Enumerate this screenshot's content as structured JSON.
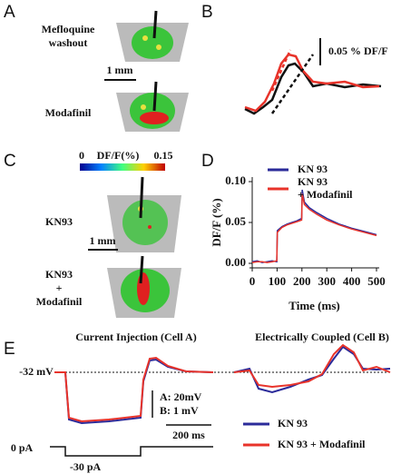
{
  "panel_a": {
    "letter": "A",
    "top_label": [
      "Mefloquine",
      "washout"
    ],
    "scale": "1 mm",
    "bottom_label": "Modafinil"
  },
  "panel_b": {
    "letter": "B",
    "scale": "0.05 % DF/F"
  },
  "panel_c": {
    "letter": "C",
    "colorbar": {
      "min": "0",
      "title": "DF/F(%)",
      "max": "0.15"
    },
    "top_label": "KN93",
    "scale": "1 mm",
    "bottom_label": [
      "KN93",
      "+",
      "Modafinil"
    ]
  },
  "panel_e": {
    "letter": "E",
    "left_title": "Current Injection (Cell A)",
    "right_title": "Electrically Coupled (Cell B)",
    "rest_label": "-32 mV",
    "scale_a": "A: 20mV",
    "scale_b": "B: 1 mV",
    "time_scale": "200 ms",
    "zero_current": "0 pA",
    "step_current": "-30 pA",
    "legend": [
      {
        "name": "KN 93",
        "color": "#2b2b9a"
      },
      {
        "name": "KN 93 + Modafinil",
        "color": "#e8332a"
      }
    ]
  },
  "chart_data": [
    {
      "type": "line",
      "letter": "D",
      "ylabel": "DF/F (%)",
      "xlabel": "Time (ms)",
      "x": [
        0,
        20,
        40,
        60,
        80,
        99,
        101,
        120,
        140,
        160,
        180,
        199,
        201,
        210,
        230,
        260,
        300,
        350,
        400,
        450,
        500
      ],
      "series": [
        {
          "name": [
            "KN 93"
          ],
          "color": "#2b2b9a",
          "values": [
            0.002,
            0.003,
            0.001,
            0.002,
            0.003,
            0.002,
            0.04,
            0.045,
            0.048,
            0.05,
            0.052,
            0.055,
            0.09,
            0.075,
            0.068,
            0.062,
            0.055,
            0.048,
            0.043,
            0.039,
            0.035
          ]
        },
        {
          "name": [
            "KN 93",
            "+ Modafinil"
          ],
          "color": "#e8332a",
          "values": [
            0.001,
            0.002,
            0.002,
            0.001,
            0.002,
            0.003,
            0.038,
            0.044,
            0.047,
            0.049,
            0.051,
            0.053,
            0.085,
            0.072,
            0.066,
            0.06,
            0.053,
            0.047,
            0.042,
            0.038,
            0.034
          ]
        }
      ],
      "xlim": [
        0,
        500
      ],
      "ylim": [
        0,
        0.1
      ],
      "xticks": [
        0,
        100,
        200,
        300,
        400,
        500
      ],
      "yticks": [
        {
          "value": 0,
          "label": "0.00"
        },
        {
          "value": 0.05,
          "label": "0.05"
        },
        {
          "value": 0.1,
          "label": "0.10"
        }
      ]
    }
  ]
}
